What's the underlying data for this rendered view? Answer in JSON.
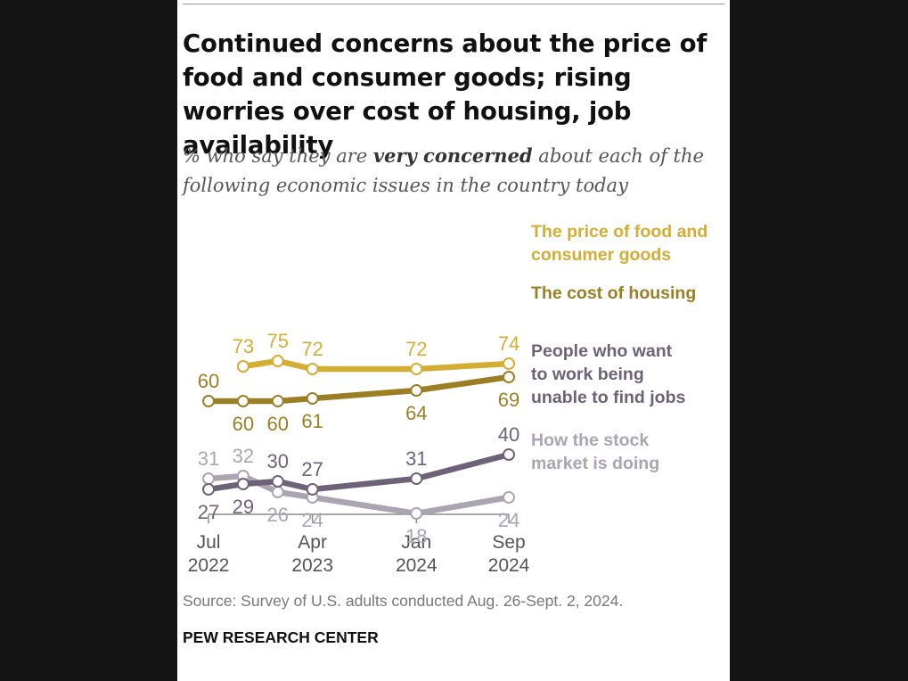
{
  "title": "Continued concerns about the price of food and consumer goods; rising worries over cost of housing, job availability",
  "subtitle": {
    "before": "% who say they are ",
    "emphasis": "very concerned",
    "after": " about each of the following economic issues in the country today"
  },
  "source": "Source: Survey of U.S. adults conducted Aug. 26-Sept. 2, 2024.",
  "brand": "PEW RESEARCH CENTER",
  "chart_data": {
    "type": "line",
    "x_ticks": [
      {
        "date": "2022-07",
        "line1": "Jul",
        "line2": "2022"
      },
      {
        "date": "2023-04",
        "line1": "Apr",
        "line2": "2023"
      },
      {
        "date": "2024-01",
        "line1": "Jan",
        "line2": "2024"
      },
      {
        "date": "2024-09",
        "line1": "Sep",
        "line2": "2024"
      }
    ],
    "series": [
      {
        "name": "The price of food and consumer goods",
        "label_lines": [
          "The price of food and",
          "consumer goods"
        ],
        "color": "#d4ad35",
        "points": [
          {
            "x": "2022-10",
            "y": 73
          },
          {
            "x": "2023-01",
            "y": 75
          },
          {
            "x": "2023-04",
            "y": 72
          },
          {
            "x": "2024-01",
            "y": 72
          },
          {
            "x": "2024-09",
            "y": 74
          }
        ]
      },
      {
        "name": "The cost of housing",
        "label_lines": [
          "The cost of housing"
        ],
        "color": "#9c7f25",
        "points": [
          {
            "x": "2022-07",
            "y": 60
          },
          {
            "x": "2022-10",
            "y": 60
          },
          {
            "x": "2023-01",
            "y": 60
          },
          {
            "x": "2023-04",
            "y": 61
          },
          {
            "x": "2024-01",
            "y": 64
          },
          {
            "x": "2024-09",
            "y": 69
          }
        ]
      },
      {
        "name": "People who want to work being unable to find jobs",
        "label_lines": [
          "People who want",
          "to work being",
          "unable to find jobs"
        ],
        "color": "#6e6278",
        "points": [
          {
            "x": "2022-07",
            "y": 27
          },
          {
            "x": "2022-10",
            "y": 29
          },
          {
            "x": "2023-01",
            "y": 30
          },
          {
            "x": "2023-04",
            "y": 27
          },
          {
            "x": "2024-01",
            "y": 31
          },
          {
            "x": "2024-09",
            "y": 40
          }
        ]
      },
      {
        "name": "How the stock market is doing",
        "label_lines": [
          "How the stock",
          "market is doing"
        ],
        "color": "#aba4b3",
        "points": [
          {
            "x": "2022-07",
            "y": 31
          },
          {
            "x": "2022-10",
            "y": 32
          },
          {
            "x": "2023-01",
            "y": 26
          },
          {
            "x": "2023-04",
            "y": 24
          },
          {
            "x": "2024-01",
            "y": 18
          },
          {
            "x": "2024-09",
            "y": 24
          }
        ]
      }
    ]
  }
}
